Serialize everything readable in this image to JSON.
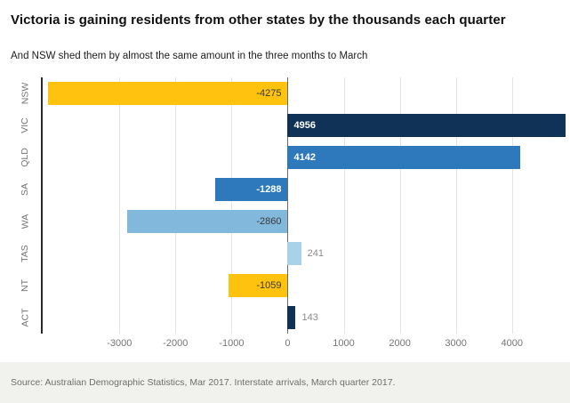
{
  "header": {
    "title": "Victoria is gaining residents from other states by the thousands each quarter",
    "subtitle": "And NSW shed them by almost the same amount in the three months to March"
  },
  "chart_data": {
    "type": "bar",
    "orientation": "horizontal",
    "title": "Victoria is gaining residents from other states by the thousands each quarter",
    "subtitle": "And NSW shed them by almost the same amount in the three months to March",
    "xlabel": "",
    "ylabel": "",
    "grid": true,
    "categories": [
      "NSW",
      "VIC",
      "QLD",
      "SA",
      "WA",
      "TAS",
      "NT",
      "ACT"
    ],
    "values": [
      -4275,
      4956,
      4142,
      -1288,
      -2860,
      241,
      -1059,
      143
    ],
    "xlim": [
      -4400,
      4956
    ],
    "x_ticks": [
      -3000,
      -2000,
      -1000,
      0,
      1000,
      2000,
      3000,
      4000
    ],
    "x_tick_labels": [
      "-3000",
      "-2000",
      "-1000",
      "0",
      "1000",
      "2000",
      "3000",
      "4000"
    ],
    "bars": [
      {
        "state": "NSW",
        "value": -4275,
        "label": "-4275",
        "color": "#FFC20E",
        "label_inside": true,
        "label_color": "#3a3a3a",
        "label_bold": false
      },
      {
        "state": "VIC",
        "value": 4956,
        "label": "4956",
        "color": "#113257",
        "label_inside": true,
        "label_color": "#ffffff",
        "label_bold": true
      },
      {
        "state": "QLD",
        "value": 4142,
        "label": "4142",
        "color": "#2D79BB",
        "label_inside": true,
        "label_color": "#ffffff",
        "label_bold": true
      },
      {
        "state": "SA",
        "value": -1288,
        "label": "-1288",
        "color": "#2D79BB",
        "label_inside": true,
        "label_color": "#ffffff",
        "label_bold": true
      },
      {
        "state": "WA",
        "value": -2860,
        "label": "-2860",
        "color": "#82B8DC",
        "label_inside": true,
        "label_color": "#3a3a3a",
        "label_bold": false
      },
      {
        "state": "TAS",
        "value": 241,
        "label": "241",
        "color": "#A8D1EA",
        "label_inside": false,
        "label_color": "#8a8a8a",
        "label_bold": false
      },
      {
        "state": "NT",
        "value": -1059,
        "label": "-1059",
        "color": "#FFC20E",
        "label_inside": true,
        "label_color": "#3a3a3a",
        "label_bold": false
      },
      {
        "state": "ACT",
        "value": 143,
        "label": "143",
        "color": "#113257",
        "label_inside": false,
        "label_color": "#8a8a8a",
        "label_bold": false
      }
    ]
  },
  "footer": {
    "source": "Source: Australian Demographic Statistics, Mar 2017.  Interstate arrivals, March quarter 2017."
  }
}
